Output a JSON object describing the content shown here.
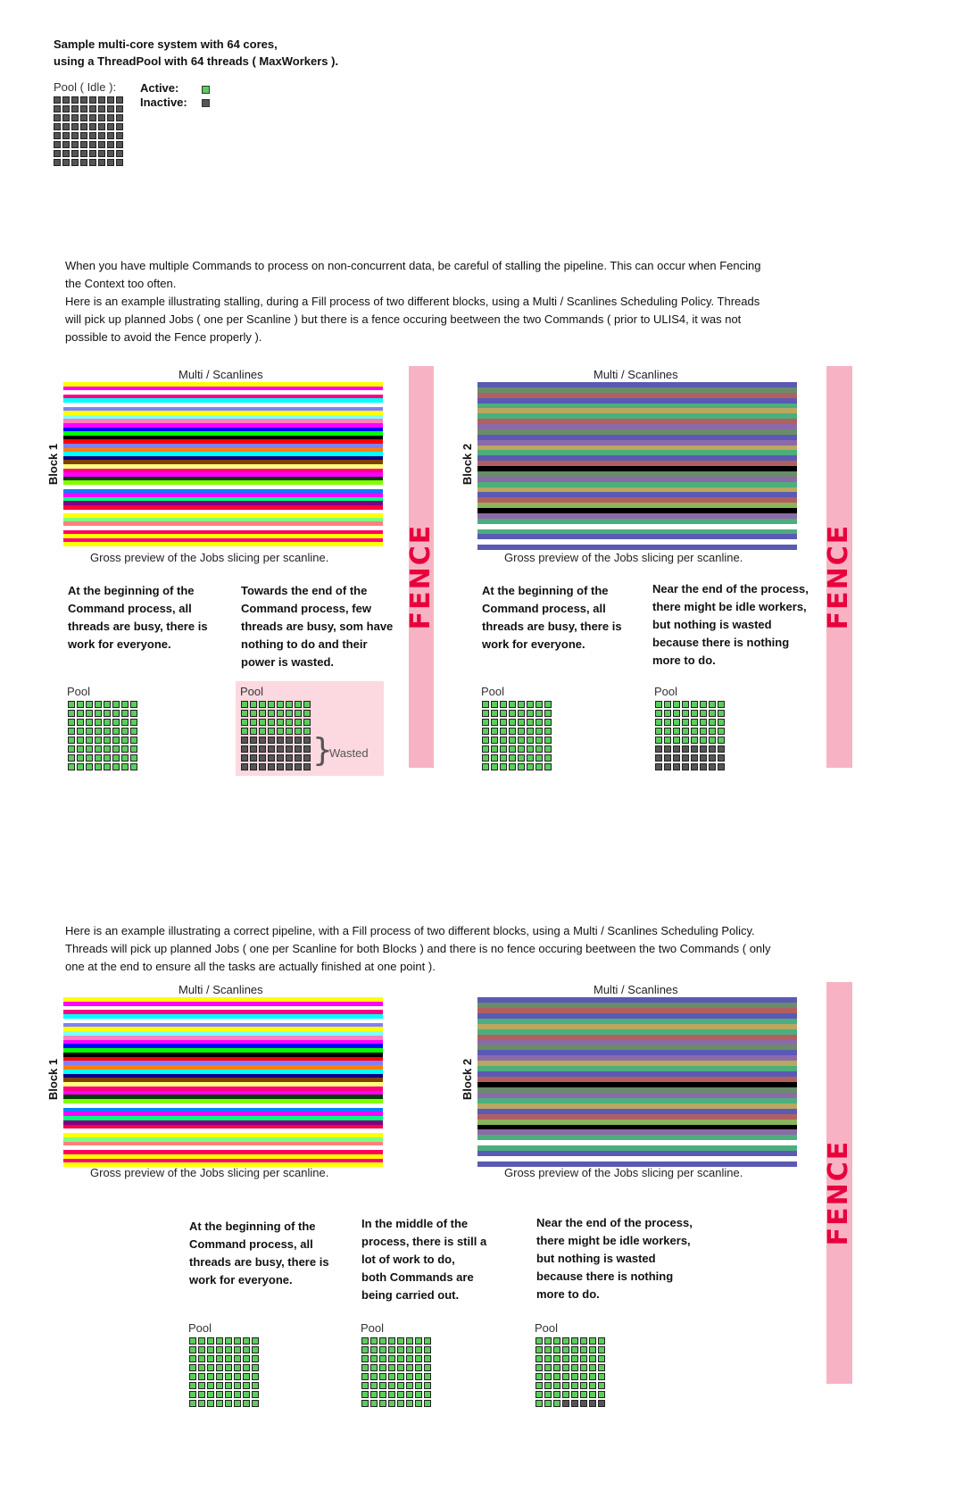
{
  "colors": {
    "active": "#5ccc5c",
    "inactive": "#555555",
    "fence_bg": "#f7b3c3",
    "fence_text": "#e8003c",
    "wasted_bg": "#fcd9e0"
  },
  "intro": {
    "line1": "Sample multi-core system with 64 cores,",
    "line2": "using a ThreadPool with 64 threads ( MaxWorkers ).",
    "pool_idle_label": "Pool ( Idle ):",
    "active_label": "Active:",
    "inactive_label": "Inactive:"
  },
  "section1": {
    "para_line1": "When you have multiple Commands to process on non-concurrent data, be careful of stalling the pipeline. This can occur when Fencing",
    "para_line2": "the Context too often.",
    "para_line3": "Here is an example illustrating stalling, during a Fill process of two different blocks, using a Multi / Scanlines Scheduling Policy. Threads",
    "para_line4": "will pick up planned Jobs ( one per Scanline ) but there is a fence occuring beetween the two Commands ( prior to ULIS4, it was not",
    "para_line5": "possible to avoid the Fence properly ).",
    "left": {
      "chart_title": "Multi / Scanlines",
      "block_label": "Block 1",
      "caption": "Gross preview of the Jobs slicing per scanline.",
      "desc1": [
        "At the beginning of the",
        "Command process, all",
        "threads are busy, there is",
        "work for everyone."
      ],
      "desc2": [
        "Towards the end of the",
        "Command process, few",
        "threads are busy, som have",
        "nothing to do and their",
        "power is wasted."
      ],
      "pool1_label": "Pool",
      "pool2_label": "Pool",
      "wasted_label": "Wasted"
    },
    "fence_label": "FENCE",
    "right": {
      "chart_title": "Multi / Scanlines",
      "block_label": "Block 2",
      "caption": "Gross preview of the Jobs slicing per scanline.",
      "desc1": [
        "At the beginning of the",
        "Command process, all",
        "threads are busy, there is",
        "work for everyone."
      ],
      "desc2": [
        "Near the end of the process,",
        "there might be idle workers,",
        "but nothing is wasted",
        "because there is nothing",
        "more to do."
      ],
      "pool1_label": "Pool",
      "pool2_label": "Pool"
    },
    "fence2_label": "FENCE"
  },
  "section2": {
    "para_line1": "Here is an example illustrating a correct pipeline, with a Fill process of two different blocks, using a Multi / Scanlines Scheduling Policy.",
    "para_line2": "Threads will pick up planned Jobs ( one per Scanline for both Blocks ) and there is no fence occuring beetween the two Commands ( only",
    "para_line3": "one at the end to ensure all the tasks are actually finished at one point ).",
    "left": {
      "chart_title": "Multi / Scanlines",
      "block_label": "Block 1",
      "caption": "Gross preview of the Jobs slicing per scanline."
    },
    "right": {
      "chart_title": "Multi / Scanlines",
      "block_label": "Block 2",
      "caption": "Gross preview of the Jobs slicing per scanline."
    },
    "desc1": [
      "At the beginning of the",
      "Command process, all",
      "threads are busy, there is",
      "work for everyone."
    ],
    "desc2": [
      "In the middle of the",
      "process, there is still a",
      "lot of work to do,",
      "both Commands are",
      "being carried out."
    ],
    "desc3": [
      "Near the end of the process,",
      "there might be idle workers,",
      "but nothing is wasted",
      "because there is nothing",
      "more to do."
    ],
    "pool1_label": "Pool",
    "pool2_label": "Pool",
    "pool3_label": "Pool",
    "fence_label": "FENCE"
  },
  "pools": {
    "idle": {
      "active": 0,
      "total": 64
    },
    "s1_left_begin": {
      "active": 64,
      "total": 64
    },
    "s1_left_end": {
      "active": 32,
      "total": 64
    },
    "s1_right_begin": {
      "active": 64,
      "total": 64
    },
    "s1_right_end": {
      "active": 40,
      "total": 64
    },
    "s2_begin": {
      "active": 64,
      "total": 64
    },
    "s2_middle": {
      "active": 64,
      "total": 64
    },
    "s2_end": {
      "active": 59,
      "total": 64
    }
  },
  "strips": {
    "block1": [
      "#ffff00",
      "#ff00ff",
      "#ffffff",
      "#ff0080",
      "#00ffff",
      "#ffffff",
      "#8080ff",
      "#ffff00",
      "#80ffff",
      "#ff80c0",
      "#ff00ff",
      "#0000ff",
      "#00ff00",
      "#000000",
      "#ff0000",
      "#8080ff",
      "#ff8000",
      "#00ffff",
      "#000080",
      "#804000",
      "#ffff80",
      "#ff0080",
      "#ff00ff",
      "#004000",
      "#80ff00",
      "#ffffff",
      "#0080ff",
      "#ff00ff",
      "#00ff80",
      "#800080",
      "#ff0040",
      "#ffffff",
      "#ffff00",
      "#80ff80",
      "#ff8080",
      "#ffffff",
      "#ff0060",
      "#ffff00",
      "#ff0080",
      "#ffff00"
    ],
    "block2": [
      "#5a5ab4",
      "#6a8c6a",
      "#b06060",
      "#5a5ab4",
      "#4cae7c",
      "#b8a860",
      "#4cae7c",
      "#b06060",
      "#8c6aa8",
      "#6a8c6a",
      "#5a5ab4",
      "#8c6aa8",
      "#b8a860",
      "#4cae7c",
      "#5a5ab4",
      "#b06060",
      "#000000",
      "#6a8c6a",
      "#8c6aa8",
      "#4cae7c",
      "#b8a860",
      "#5a5ab4",
      "#b06060",
      "#8cb45a",
      "#000000",
      "#8c6aa8",
      "#4cae7c",
      "#ffffff",
      "#4cae7c",
      "#5a5ab4",
      "#ffffff",
      "#5a5ab4"
    ]
  }
}
